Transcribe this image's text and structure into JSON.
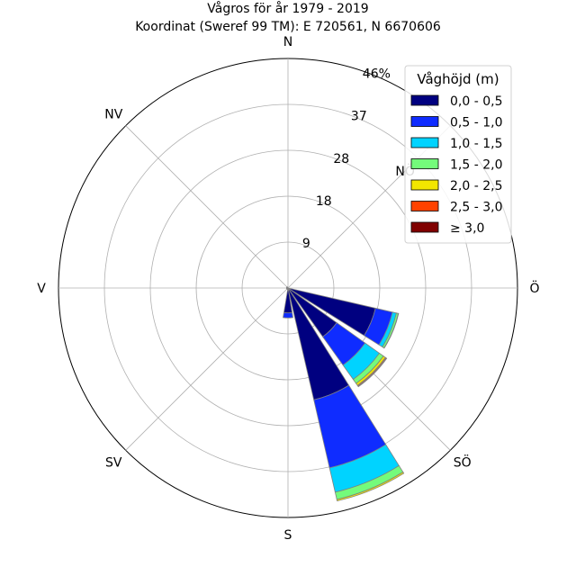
{
  "chart_data": {
    "type": "windrose",
    "title": "Vågros för år 1979 - 2019",
    "subtitle": "Koordinat (Sweref 99 TM): E 720561, N 6670606",
    "directions": [
      "N",
      "NÖ",
      "Ö",
      "SÖ",
      "S",
      "SV",
      "V",
      "NV"
    ],
    "direction_labels": [
      "N",
      "Ö",
      "SÖ",
      "S",
      "SV",
      "V",
      "NV"
    ],
    "radial_ticks": [
      "9",
      "18",
      "28",
      "37",
      "46%"
    ],
    "radial_tick_values": [
      9.2,
      18.4,
      27.6,
      36.8,
      46
    ],
    "rmax": 46,
    "legend": {
      "title": "Våghöjd (m)",
      "bins": [
        "0,0 - 0,5",
        "0,5 - 1,0",
        "1,0 - 1,5",
        "1,5 - 2,0",
        "2,0 - 2,5",
        "2,5 - 3,0",
        "≥ 3,0"
      ],
      "colors": [
        "#000080",
        "#0f2cff",
        "#00d3ff",
        "#74fb7b",
        "#f2e600",
        "#ff4200",
        "#800000"
      ]
    },
    "sectors": [
      {
        "angle_deg": 112.5,
        "values": [
          18.0,
          3.5,
          0.8,
          0.4,
          0.05,
          0.0,
          0.0
        ]
      },
      {
        "angle_deg": 135.0,
        "values": [
          12.0,
          7.0,
          3.5,
          1.0,
          0.5,
          0.2,
          0.1
        ]
      },
      {
        "angle_deg": 157.5,
        "values": [
          23.0,
          14.0,
          5.0,
          1.5,
          0.3,
          0.0,
          0.0
        ]
      },
      {
        "angle_deg": 180.0,
        "values": [
          5.0,
          1.0,
          0.0,
          0.0,
          0.0,
          0.0,
          0.0
        ]
      },
      {
        "angle_deg": 202.5,
        "values": [
          0.3,
          0.0,
          0.0,
          0.0,
          0.0,
          0.0,
          0.0
        ]
      },
      {
        "angle_deg": 225.0,
        "values": [
          0.3,
          0.0,
          0.0,
          0.0,
          0.0,
          0.0,
          0.0
        ]
      },
      {
        "angle_deg": 247.5,
        "values": [
          0.3,
          0.0,
          0.0,
          0.0,
          0.0,
          0.0,
          0.0
        ]
      },
      {
        "angle_deg": 270.0,
        "values": [
          0.3,
          0.0,
          0.0,
          0.0,
          0.0,
          0.0,
          0.0
        ]
      },
      {
        "angle_deg": 292.5,
        "values": [
          0.3,
          0.0,
          0.0,
          0.0,
          0.0,
          0.0,
          0.0
        ]
      },
      {
        "angle_deg": 315.0,
        "values": [
          0.3,
          0.0,
          0.0,
          0.0,
          0.0,
          0.0,
          0.0
        ]
      }
    ],
    "grid": true
  }
}
